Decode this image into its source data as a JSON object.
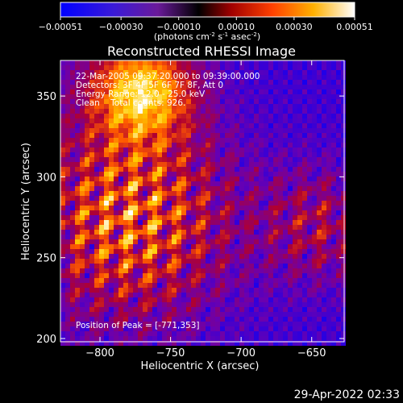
{
  "colorbar": {
    "ticks": [
      "-0.00051",
      "-0.00030",
      "-0.00010",
      "0.00010",
      "0.00030",
      "0.00051"
    ],
    "unit_prefix": "(photons cm",
    "unit_exp1": "-2",
    "unit_mid": " s",
    "unit_exp2": "-1",
    "unit_mid2": " asec",
    "unit_exp3": "-2",
    "unit_suffix": ")"
  },
  "chart_data": {
    "type": "heatmap",
    "title": "Reconstructed RHESSI Image",
    "xlabel": "Heliocentric X (arcsec)",
    "ylabel": "Heliocentric Y (arcsec)",
    "xlim": [
      -828,
      -627
    ],
    "ylim": [
      198,
      372
    ],
    "x_ticks": [
      -800,
      -750,
      -700,
      -650
    ],
    "y_ticks": [
      200,
      250,
      300,
      350
    ],
    "x_tick_labels": [
      "−800",
      "−750",
      "−700",
      "−650"
    ],
    "y_tick_labels": [
      "200",
      "250",
      "300",
      "350"
    ],
    "value_range": [
      -0.00051,
      0.00051
    ],
    "colormap": [
      "#0000ff",
      "#6a00b0",
      "#b00030",
      "#ff5a00",
      "#ffcc00",
      "#ffffff"
    ],
    "peak": [
      -771,
      353
    ],
    "annotations": {
      "time": "22-Mar-2005 09:37:20.000 to 09:39:00.000",
      "detectors": "Detectors: 3F 4F 5F 6F 7F 8F, Att 0",
      "energy": "Energy Range: 12.0 - 25.0 keV",
      "clean": "Clean    Total counts: 926.",
      "peak_text": "Position of Peak = [-771,353]"
    }
  },
  "footer": {
    "timestamp": "29-Apr-2022 02:33"
  }
}
